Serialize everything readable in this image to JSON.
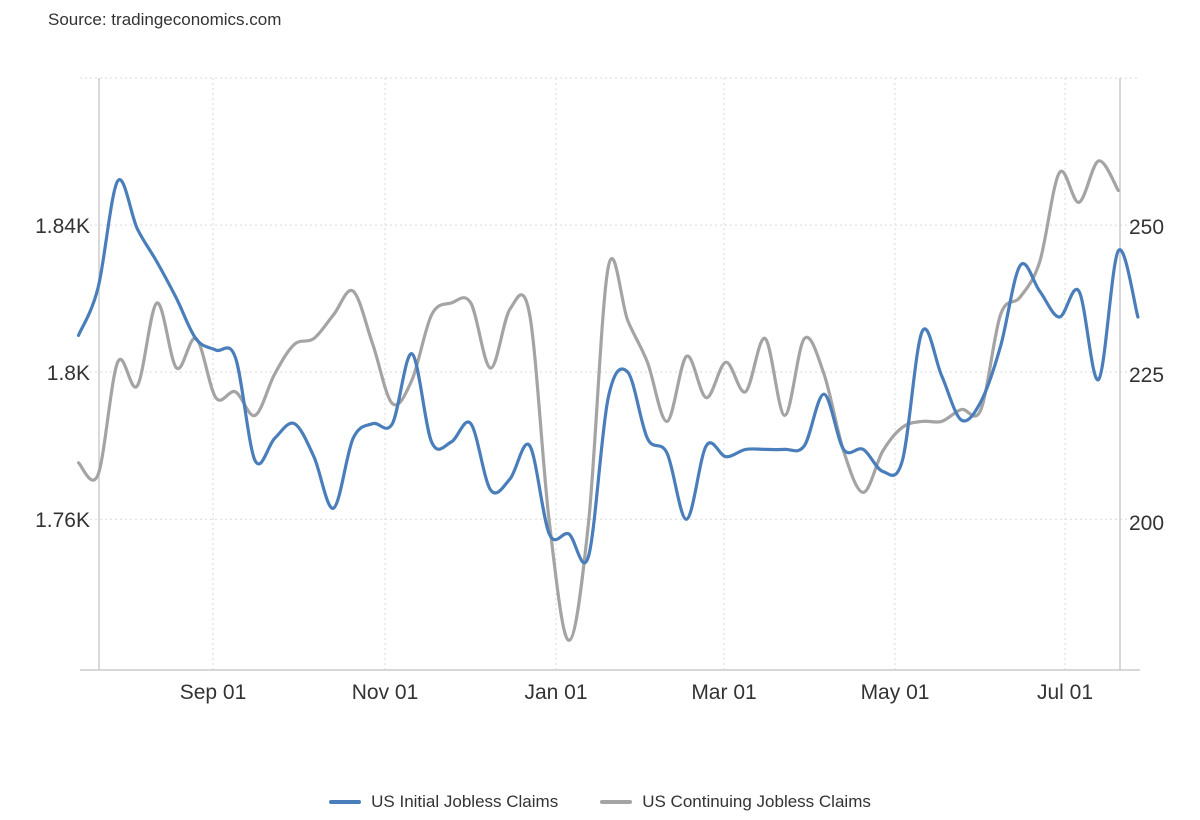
{
  "source": "Source: tradingeconomics.com",
  "colors": {
    "initial": "#4a7ebb",
    "continuing": "#a4a4a4",
    "grid": "#d9d9d9",
    "axis": "#cccccc"
  },
  "chart_data": {
    "type": "line",
    "x_tick_labels": [
      "Sep 01",
      "Nov 01",
      "Jan 01",
      "Mar 01",
      "May 01",
      "Jul 01"
    ],
    "left_axis": {
      "ticks": [
        "1.76K",
        "1.8K",
        "1.84K"
      ],
      "tick_values": [
        1760,
        1800,
        1840
      ],
      "range": [
        1719,
        1880
      ]
    },
    "right_axis": {
      "ticks": [
        "200",
        "225",
        "250"
      ],
      "tick_values": [
        200,
        225,
        250
      ],
      "range": [
        175,
        275
      ]
    },
    "grid": true,
    "legend_position": "bottom-center",
    "series": [
      {
        "name": "US Initial Jobless Claims",
        "axis": "left",
        "points": [
          [
            "2023-07-15",
            1810
          ],
          [
            "2023-07-22",
            1823
          ],
          [
            "2023-07-29",
            1852
          ],
          [
            "2023-08-05",
            1839
          ],
          [
            "2023-08-12",
            1830
          ],
          [
            "2023-08-19",
            1820
          ],
          [
            "2023-08-26",
            1809
          ],
          [
            "2023-09-02",
            1806
          ],
          [
            "2023-09-09",
            1804
          ],
          [
            "2023-09-16",
            1776
          ],
          [
            "2023-09-23",
            1782
          ],
          [
            "2023-09-30",
            1786
          ],
          [
            "2023-10-07",
            1777
          ],
          [
            "2023-10-14",
            1763
          ],
          [
            "2023-10-21",
            1782
          ],
          [
            "2023-10-28",
            1786
          ],
          [
            "2023-11-04",
            1786
          ],
          [
            "2023-11-11",
            1805
          ],
          [
            "2023-11-18",
            1781
          ],
          [
            "2023-11-25",
            1781
          ],
          [
            "2023-12-02",
            1786
          ],
          [
            "2023-12-09",
            1768
          ],
          [
            "2023-12-16",
            1771
          ],
          [
            "2023-12-23",
            1780
          ],
          [
            "2023-12-30",
            1756
          ],
          [
            "2024-01-06",
            1756
          ],
          [
            "2024-01-13",
            1750
          ],
          [
            "2024-01-20",
            1793
          ],
          [
            "2024-01-27",
            1800
          ],
          [
            "2024-02-03",
            1782
          ],
          [
            "2024-02-10",
            1778
          ],
          [
            "2024-02-17",
            1760
          ],
          [
            "2024-02-24",
            1780
          ],
          [
            "2024-03-02",
            1777
          ],
          [
            "2024-03-09",
            1779
          ],
          [
            "2024-03-16",
            1779
          ],
          [
            "2024-03-23",
            1779
          ],
          [
            "2024-03-30",
            1780
          ],
          [
            "2024-04-06",
            1794
          ],
          [
            "2024-04-13",
            1779
          ],
          [
            "2024-04-20",
            1779
          ],
          [
            "2024-04-27",
            1773
          ],
          [
            "2024-05-04",
            1776
          ],
          [
            "2024-05-11",
            1811
          ],
          [
            "2024-05-18",
            1799
          ],
          [
            "2024-05-25",
            1787
          ],
          [
            "2024-06-01",
            1792
          ],
          [
            "2024-06-08",
            1807
          ],
          [
            "2024-06-15",
            1829
          ],
          [
            "2024-06-22",
            1822
          ],
          [
            "2024-06-29",
            1815
          ],
          [
            "2024-07-06",
            1822
          ],
          [
            "2024-07-13",
            1798
          ],
          [
            "2024-07-20",
            1833
          ],
          [
            "2024-07-27",
            1815
          ]
        ]
      },
      {
        "name": "US Continuing Jobless Claims",
        "axis": "right",
        "points": [
          [
            "2023-07-15",
            210
          ],
          [
            "2023-07-22",
            208
          ],
          [
            "2023-07-29",
            227
          ],
          [
            "2023-08-05",
            223
          ],
          [
            "2023-08-12",
            237
          ],
          [
            "2023-08-19",
            226
          ],
          [
            "2023-08-26",
            231
          ],
          [
            "2023-09-02",
            221
          ],
          [
            "2023-09-09",
            222
          ],
          [
            "2023-09-16",
            218
          ],
          [
            "2023-09-23",
            225
          ],
          [
            "2023-09-30",
            230
          ],
          [
            "2023-10-07",
            231
          ],
          [
            "2023-10-14",
            235
          ],
          [
            "2023-10-21",
            239
          ],
          [
            "2023-10-28",
            230
          ],
          [
            "2023-11-04",
            220
          ],
          [
            "2023-11-11",
            224
          ],
          [
            "2023-11-18",
            235
          ],
          [
            "2023-11-25",
            237
          ],
          [
            "2023-12-02",
            237
          ],
          [
            "2023-12-09",
            226
          ],
          [
            "2023-12-16",
            236
          ],
          [
            "2023-12-23",
            235
          ],
          [
            "2023-12-30",
            200
          ],
          [
            "2024-01-06",
            180
          ],
          [
            "2024-01-13",
            200
          ],
          [
            "2024-01-20",
            243
          ],
          [
            "2024-01-27",
            234
          ],
          [
            "2024-02-03",
            227
          ],
          [
            "2024-02-10",
            217
          ],
          [
            "2024-02-17",
            228
          ],
          [
            "2024-02-24",
            221
          ],
          [
            "2024-03-02",
            227
          ],
          [
            "2024-03-09",
            222
          ],
          [
            "2024-03-16",
            231
          ],
          [
            "2024-03-23",
            218
          ],
          [
            "2024-03-30",
            231
          ],
          [
            "2024-04-06",
            225
          ],
          [
            "2024-04-13",
            212
          ],
          [
            "2024-04-20",
            205
          ],
          [
            "2024-04-27",
            212
          ],
          [
            "2024-05-04",
            216
          ],
          [
            "2024-05-11",
            217
          ],
          [
            "2024-05-18",
            217
          ],
          [
            "2024-05-25",
            219
          ],
          [
            "2024-06-01",
            219
          ],
          [
            "2024-06-08",
            235
          ],
          [
            "2024-06-15",
            238
          ],
          [
            "2024-06-22",
            244
          ],
          [
            "2024-06-29",
            259
          ],
          [
            "2024-07-06",
            254
          ],
          [
            "2024-07-13",
            261
          ],
          [
            "2024-07-20",
            256
          ]
        ]
      }
    ]
  }
}
